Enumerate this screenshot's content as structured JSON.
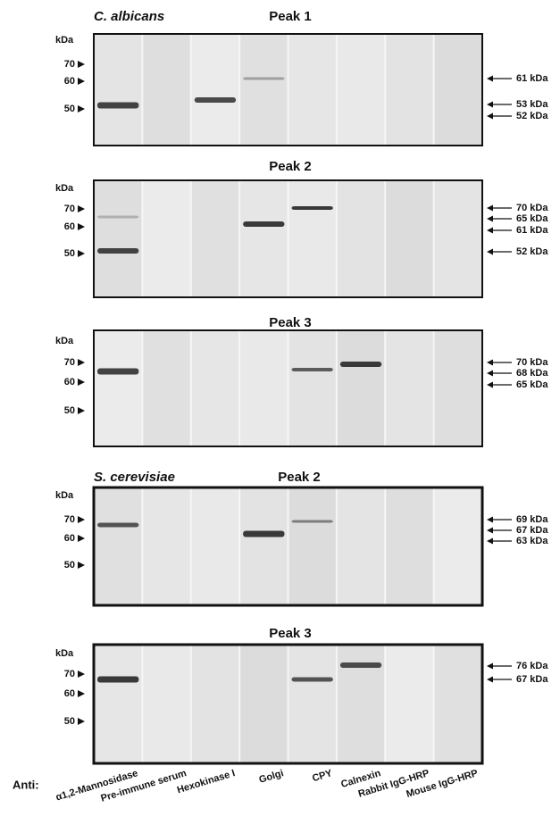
{
  "unit_label": "kDa",
  "panels": [
    {
      "species": "C. albicans",
      "title": "Peak 1",
      "markers": [
        "70",
        "60",
        "50"
      ],
      "annotations": [
        "61 kDa",
        "53 kDa",
        "52 kDa"
      ]
    },
    {
      "title": "Peak 2",
      "markers": [
        "70",
        "60",
        "50"
      ],
      "annotations": [
        "70 kDa",
        "65 kDa",
        "61 kDa",
        "52 kDa"
      ]
    },
    {
      "title": "Peak 3",
      "markers": [
        "70",
        "60",
        "50"
      ],
      "annotations": [
        "70 kDa",
        "68 kDa",
        "65 kDa"
      ]
    },
    {
      "species": "S. cerevisiae",
      "title": "Peak 2",
      "markers": [
        "70",
        "60",
        "50"
      ],
      "annotations": [
        "69 kDa",
        "67 kDa",
        "63 kDa"
      ]
    },
    {
      "title": "Peak 3",
      "markers": [
        "70",
        "60",
        "50"
      ],
      "annotations": [
        "76 kDa",
        "67 kDa"
      ]
    }
  ],
  "anti_label": "Anti:",
  "lanes": [
    "α1,2-Mannosidase",
    "Pre-immune serum",
    "Hexokinase I",
    "Golgi",
    "CPY",
    "Calnexin",
    "Rabbit IgG-HRP",
    "Mouse IgG-HRP"
  ]
}
